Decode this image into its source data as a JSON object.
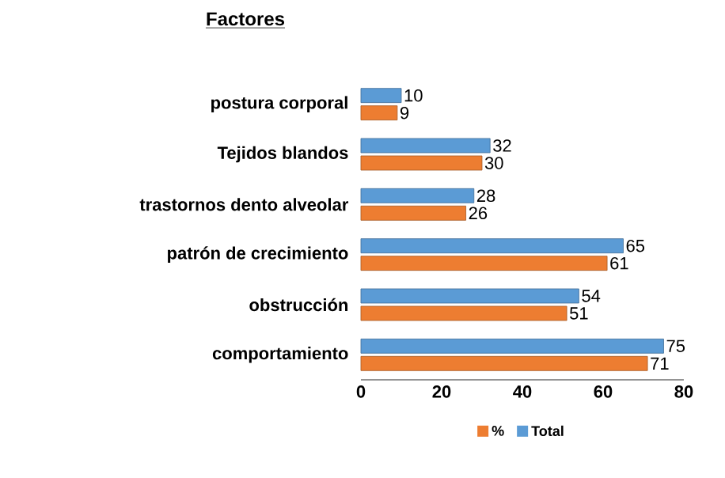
{
  "chart_data": {
    "type": "bar",
    "orientation": "horizontal",
    "title": "Factores",
    "categories": [
      "postura corporal",
      "Tejidos blandos",
      "trastornos dento alveolar",
      "patrón de crecimiento",
      "obstrucción",
      "comportamiento"
    ],
    "series": [
      {
        "name": "%",
        "color": "#ed7d31",
        "values": [
          9,
          30,
          26,
          61,
          51,
          71
        ]
      },
      {
        "name": "Total",
        "color": "#5b9bd5",
        "values": [
          10,
          32,
          28,
          65,
          54,
          75
        ]
      }
    ],
    "xlim": [
      0,
      80
    ],
    "xticks": [
      0,
      20,
      40,
      60,
      80
    ],
    "data_labels": true,
    "legend": "bottom",
    "grid": false
  }
}
